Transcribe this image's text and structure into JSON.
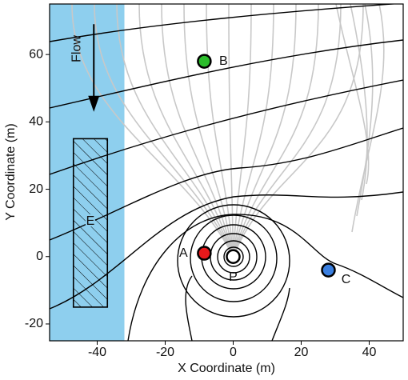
{
  "chart_data": {
    "type": "scatter",
    "xlabel": "X Coordinate (m)",
    "ylabel": "Y Coordinate (m)",
    "xlim": [
      -54,
      50
    ],
    "ylim": [
      -25,
      75
    ],
    "xticks": [
      -40,
      -20,
      0,
      20,
      40
    ],
    "yticks": [
      -20,
      0,
      20,
      40,
      60
    ],
    "shaded_band": {
      "xlim": [
        -54,
        -32
      ],
      "color": "#8ecfee"
    },
    "region": {
      "label": "E",
      "xlim": [
        -47,
        -37
      ],
      "ylim": [
        -15,
        35
      ]
    },
    "flow_arrow": {
      "label": "Flow",
      "x": -41,
      "y_start": 69,
      "y_end": 43
    },
    "points": [
      {
        "label": "A",
        "x": -8.5,
        "y": 1,
        "color": "#e8191b"
      },
      {
        "label": "B",
        "x": -8.5,
        "y": 58,
        "color": "#2bbd2b"
      },
      {
        "label": "C",
        "x": 28,
        "y": -4,
        "color": "#3a7fe0"
      },
      {
        "label": "P",
        "x": 0,
        "y": 0,
        "color": "#ffffff"
      }
    ]
  }
}
